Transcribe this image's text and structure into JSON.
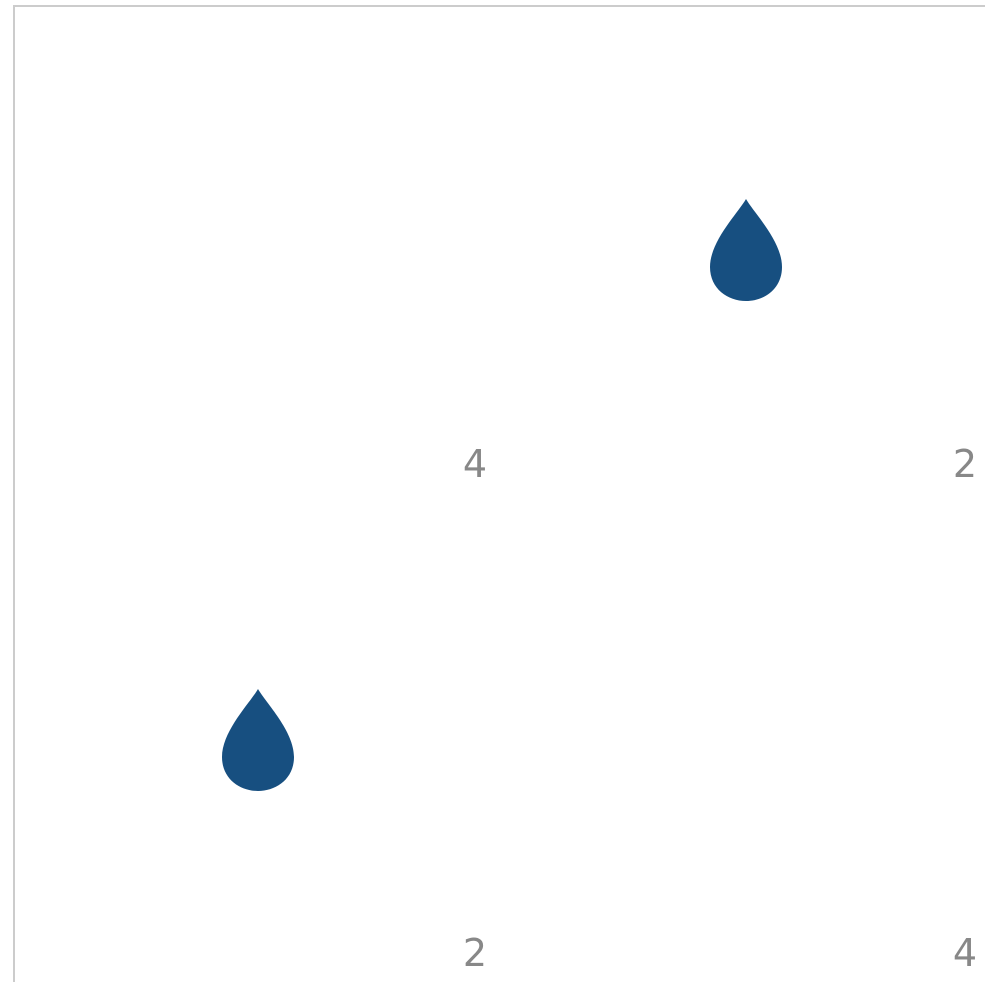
{
  "board": {
    "cells": [
      {
        "count": "4",
        "has_drop": false
      },
      {
        "count": "2",
        "has_drop": true
      },
      {
        "count": "2",
        "has_drop": true
      },
      {
        "count": "4",
        "has_drop": false
      }
    ],
    "colors": {
      "drop": "#174f80",
      "grid_line": "#cccccc",
      "count_text": "#888888",
      "background": "#ffffff"
    },
    "icons": {
      "drop": "water-drop-icon"
    }
  }
}
